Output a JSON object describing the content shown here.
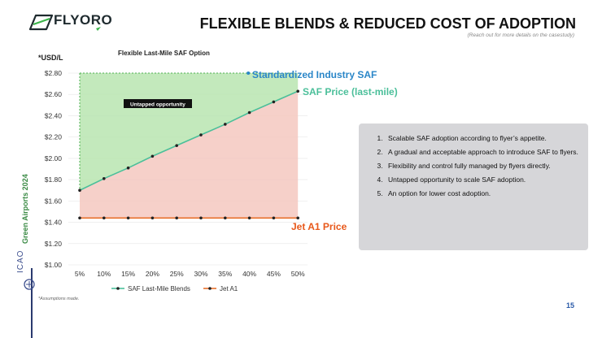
{
  "brand": {
    "name": "FLYORO",
    "accent": "#3bb54a"
  },
  "header": {
    "title": "FLEXIBLE BLENDS & REDUCED COST OF ADOPTION",
    "subtitle": "(Reach out for more details on the casestudy)"
  },
  "side": {
    "label": "Green Airports 2024",
    "org": "ICAO"
  },
  "units_label": "*USD/L",
  "footnote": "*Assumptions made.",
  "page_number": "15",
  "chart_data": {
    "type": "line",
    "title": "Flexible Last-Mile SAF Option",
    "categories": [
      "5%",
      "10%",
      "15%",
      "20%",
      "25%",
      "30%",
      "35%",
      "40%",
      "45%",
      "50%"
    ],
    "series": [
      {
        "name": "SAF Last-Mile Blends",
        "color": "#4bbf9a",
        "values": [
          1.7,
          1.81,
          1.91,
          2.02,
          2.12,
          2.22,
          2.32,
          2.43,
          2.53,
          2.63
        ]
      },
      {
        "name": "Jet A1",
        "color": "#e8702a",
        "values": [
          1.44,
          1.44,
          1.44,
          1.44,
          1.44,
          1.44,
          1.44,
          1.44,
          1.44,
          1.44
        ]
      }
    ],
    "reference": {
      "name": "Standardized Industry SAF",
      "value": 2.8,
      "color": "#2a86c8"
    },
    "ylim": [
      1.0,
      2.8
    ],
    "yticks": [
      "$1.00",
      "$1.20",
      "$1.40",
      "$1.60",
      "$1.80",
      "$2.00",
      "$2.20",
      "$2.40",
      "$2.60",
      "$2.80"
    ],
    "annotations": {
      "untapped": "Untapped opportunity",
      "standard_label": "Standardized Industry SAF",
      "saf_label": "SAF Price (last-mile)",
      "jet_label": "Jet A1 Price"
    },
    "colors": {
      "untapped_fill": "#b9e5b0",
      "untapped_line": "#4caf50",
      "saving_fill": "#f4c8c0",
      "grid": "#e6e6e6"
    }
  },
  "info": {
    "items": [
      "Scalable SAF adoption according to flyer’s appetite.",
      "A gradual and acceptable approach to introduce SAF to flyers.",
      "Flexibility and control fully managed by flyers directly.",
      "Untapped opportunity to scale SAF adoption.",
      "An option for lower cost adoption."
    ]
  }
}
